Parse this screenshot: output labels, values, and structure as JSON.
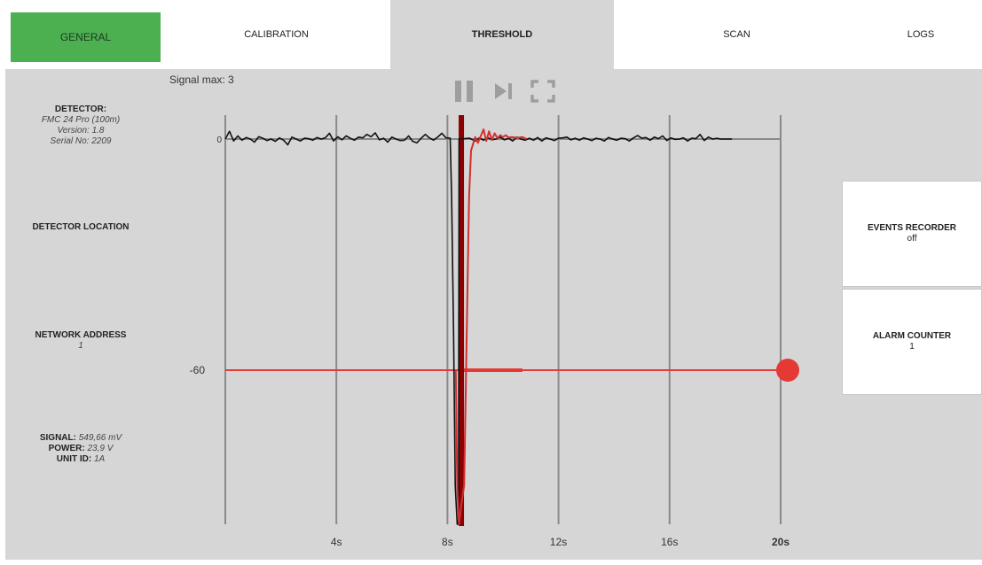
{
  "tabs": [
    {
      "label": "GENERAL"
    },
    {
      "label": "CALIBRATION"
    },
    {
      "label": "THRESHOLD"
    },
    {
      "label": "SCAN"
    },
    {
      "label": "LOGS"
    }
  ],
  "detector": {
    "title": "DETECTOR:",
    "model": "FMC 24 Pro (100m)",
    "version": "Version: 1.8",
    "serial": "Serial No: 2209"
  },
  "location": {
    "title": "DETECTOR LOCATION"
  },
  "network": {
    "title": "NETWORK ADDRESS",
    "value": "1"
  },
  "status": {
    "signal_label": "SIGNAL:",
    "signal_value": "549,66 mV",
    "power_label": "POWER:",
    "power_value": "23,9 V",
    "unit_label": "UNIT ID:",
    "unit_value": "1A"
  },
  "signal_max": "Signal max: 3",
  "controls": [
    {
      "icon": "pause-icon"
    },
    {
      "icon": "skip-next-icon"
    },
    {
      "icon": "fullscreen-icon"
    }
  ],
  "events_recorder": {
    "title": "EVENTS RECORDER",
    "value": "off"
  },
  "alarm_counter": {
    "title": "ALARM COUNTER",
    "value": "1"
  },
  "colors": {
    "accent_green": "#4caf50",
    "threshold_red": "#e53935",
    "marker_dark_red": "#8b0000",
    "signal_black": "#111111",
    "signal_red": "#d32f2f"
  },
  "chart_data": {
    "type": "line",
    "xlim": [
      0,
      20
    ],
    "ylim": [
      -100,
      3
    ],
    "x_ticks": [
      {
        "value": 4,
        "label": "4s"
      },
      {
        "value": 8,
        "label": "8s"
      },
      {
        "value": 12,
        "label": "12s"
      },
      {
        "value": 16,
        "label": "16s"
      },
      {
        "value": 20,
        "label": "20s",
        "bold": true
      }
    ],
    "y_ticks": [
      {
        "value": 0,
        "label": "0"
      },
      {
        "value": -60,
        "label": "-60"
      }
    ],
    "threshold": -60,
    "event_marker_x": 8.5,
    "series": [
      {
        "color": "#111111",
        "points": [
          [
            0,
            0
          ],
          [
            0.15,
            2
          ],
          [
            0.3,
            -0.5
          ],
          [
            0.45,
            0.8
          ],
          [
            0.6,
            -0.3
          ],
          [
            0.75,
            0.4
          ],
          [
            0.9,
            0
          ],
          [
            1.05,
            -0.8
          ],
          [
            1.2,
            0.6
          ],
          [
            1.35,
            0.2
          ],
          [
            1.5,
            -0.4
          ],
          [
            1.65,
            0
          ],
          [
            1.8,
            -0.6
          ],
          [
            1.95,
            0.3
          ],
          [
            2.1,
            -0.3
          ],
          [
            2.25,
            -1.5
          ],
          [
            2.4,
            0.5
          ],
          [
            2.55,
            0
          ],
          [
            2.7,
            -0.5
          ],
          [
            2.85,
            0.2
          ],
          [
            3,
            0.1
          ],
          [
            3.15,
            -0.3
          ],
          [
            3.3,
            0.4
          ],
          [
            3.45,
            0
          ],
          [
            3.6,
            0.3
          ],
          [
            3.75,
            1.5
          ],
          [
            3.9,
            -0.5
          ],
          [
            4.05,
            0.6
          ],
          [
            4.2,
            -0.2
          ],
          [
            4.35,
            0.8
          ],
          [
            4.5,
            0.2
          ],
          [
            4.65,
            -0.3
          ],
          [
            4.8,
            0.5
          ],
          [
            4.95,
            0.3
          ],
          [
            5.1,
            1.2
          ],
          [
            5.25,
            0.6
          ],
          [
            5.4,
            1.6
          ],
          [
            5.55,
            -0.2
          ],
          [
            5.7,
            0.2
          ],
          [
            5.85,
            -0.8
          ],
          [
            6,
            0.5
          ],
          [
            6.15,
            0
          ],
          [
            6.3,
            -0.4
          ],
          [
            6.45,
            -0.3
          ],
          [
            6.6,
            0.8
          ],
          [
            6.75,
            -0.6
          ],
          [
            6.9,
            -1
          ],
          [
            7.05,
            0.2
          ],
          [
            7.2,
            1.2
          ],
          [
            7.35,
            0.3
          ],
          [
            7.5,
            -0.3
          ],
          [
            7.65,
            0.5
          ],
          [
            7.8,
            1.5
          ],
          [
            7.95,
            0.3
          ],
          [
            8.1,
            0.2
          ],
          [
            8.15,
            -15
          ],
          [
            8.22,
            -50
          ],
          [
            8.28,
            -90
          ],
          [
            8.35,
            -100
          ],
          [
            8.4,
            -100
          ],
          [
            8.42,
            0
          ],
          [
            8.8,
            0.2
          ],
          [
            9,
            -0.5
          ],
          [
            9.15,
            0.3
          ],
          [
            9.3,
            -0.3
          ],
          [
            9.45,
            0.4
          ],
          [
            9.6,
            -0.2
          ],
          [
            9.75,
            0
          ],
          [
            9.9,
            0.5
          ],
          [
            10.05,
            -0.2
          ],
          [
            10.2,
            0.2
          ],
          [
            10.35,
            -0.5
          ],
          [
            10.5,
            0.5
          ],
          [
            10.65,
            0
          ],
          [
            10.8,
            -0.3
          ],
          [
            10.95,
            0.2
          ],
          [
            11.1,
            -0.3
          ],
          [
            11.25,
            0.4
          ],
          [
            11.4,
            -0.5
          ],
          [
            11.55,
            0.3
          ],
          [
            11.7,
            0
          ],
          [
            11.85,
            -0.4
          ],
          [
            12,
            0.2
          ],
          [
            12.15,
            0.3
          ],
          [
            12.3,
            0.5
          ],
          [
            12.45,
            -0.2
          ],
          [
            12.6,
            0.2
          ],
          [
            12.75,
            -0.3
          ],
          [
            12.9,
            0.3
          ],
          [
            13.05,
            0
          ],
          [
            13.2,
            -0.4
          ],
          [
            13.35,
            0.2
          ],
          [
            13.5,
            0
          ],
          [
            13.65,
            -0.5
          ],
          [
            13.8,
            0.4
          ],
          [
            13.95,
            0
          ],
          [
            14.1,
            -0.3
          ],
          [
            14.25,
            0.2
          ],
          [
            14.4,
            0.1
          ],
          [
            14.55,
            -0.5
          ],
          [
            14.7,
            0.3
          ],
          [
            14.85,
            0.9
          ],
          [
            15,
            0.2
          ],
          [
            15.15,
            0.4
          ],
          [
            15.3,
            -0.3
          ],
          [
            15.45,
            0.5
          ],
          [
            15.6,
            0.1
          ],
          [
            15.75,
            0.8
          ],
          [
            15.9,
            -0.4
          ],
          [
            16.05,
            0.3
          ],
          [
            16.2,
            -0.1
          ],
          [
            16.35,
            0
          ],
          [
            16.5,
            0.3
          ],
          [
            16.65,
            -0.5
          ],
          [
            16.8,
            0.2
          ],
          [
            16.95,
            0.1
          ],
          [
            17.1,
            1.2
          ],
          [
            17.25,
            -0.4
          ],
          [
            17.4,
            0.5
          ],
          [
            17.55,
            0
          ],
          [
            17.7,
            0.2
          ],
          [
            17.85,
            0
          ],
          [
            18,
            0
          ],
          [
            18.25,
            0
          ]
        ]
      },
      {
        "color": "#d32f2f",
        "points": [
          [
            8.3,
            -60
          ],
          [
            8.35,
            -90
          ],
          [
            8.42,
            -100
          ],
          [
            8.5,
            -95
          ],
          [
            8.6,
            -90
          ],
          [
            8.65,
            -70
          ],
          [
            8.72,
            -40
          ],
          [
            8.78,
            -15
          ],
          [
            8.85,
            -3
          ],
          [
            9.0,
            0.5
          ],
          [
            9.1,
            -1
          ],
          [
            9.2,
            0.8
          ],
          [
            9.3,
            2.5
          ],
          [
            9.4,
            -0.5
          ],
          [
            9.5,
            2
          ],
          [
            9.6,
            -0.2
          ],
          [
            9.7,
            1.5
          ],
          [
            9.8,
            0.2
          ],
          [
            9.9,
            1
          ],
          [
            10,
            0.5
          ],
          [
            10.1,
            1
          ],
          [
            10.2,
            0.4
          ],
          [
            10.35,
            0.5
          ],
          [
            10.5,
            0.3
          ],
          [
            10.7,
            0.5
          ],
          [
            10.85,
            0
          ]
        ]
      }
    ],
    "threshold_hold": [
      8.45,
      10.7
    ]
  }
}
